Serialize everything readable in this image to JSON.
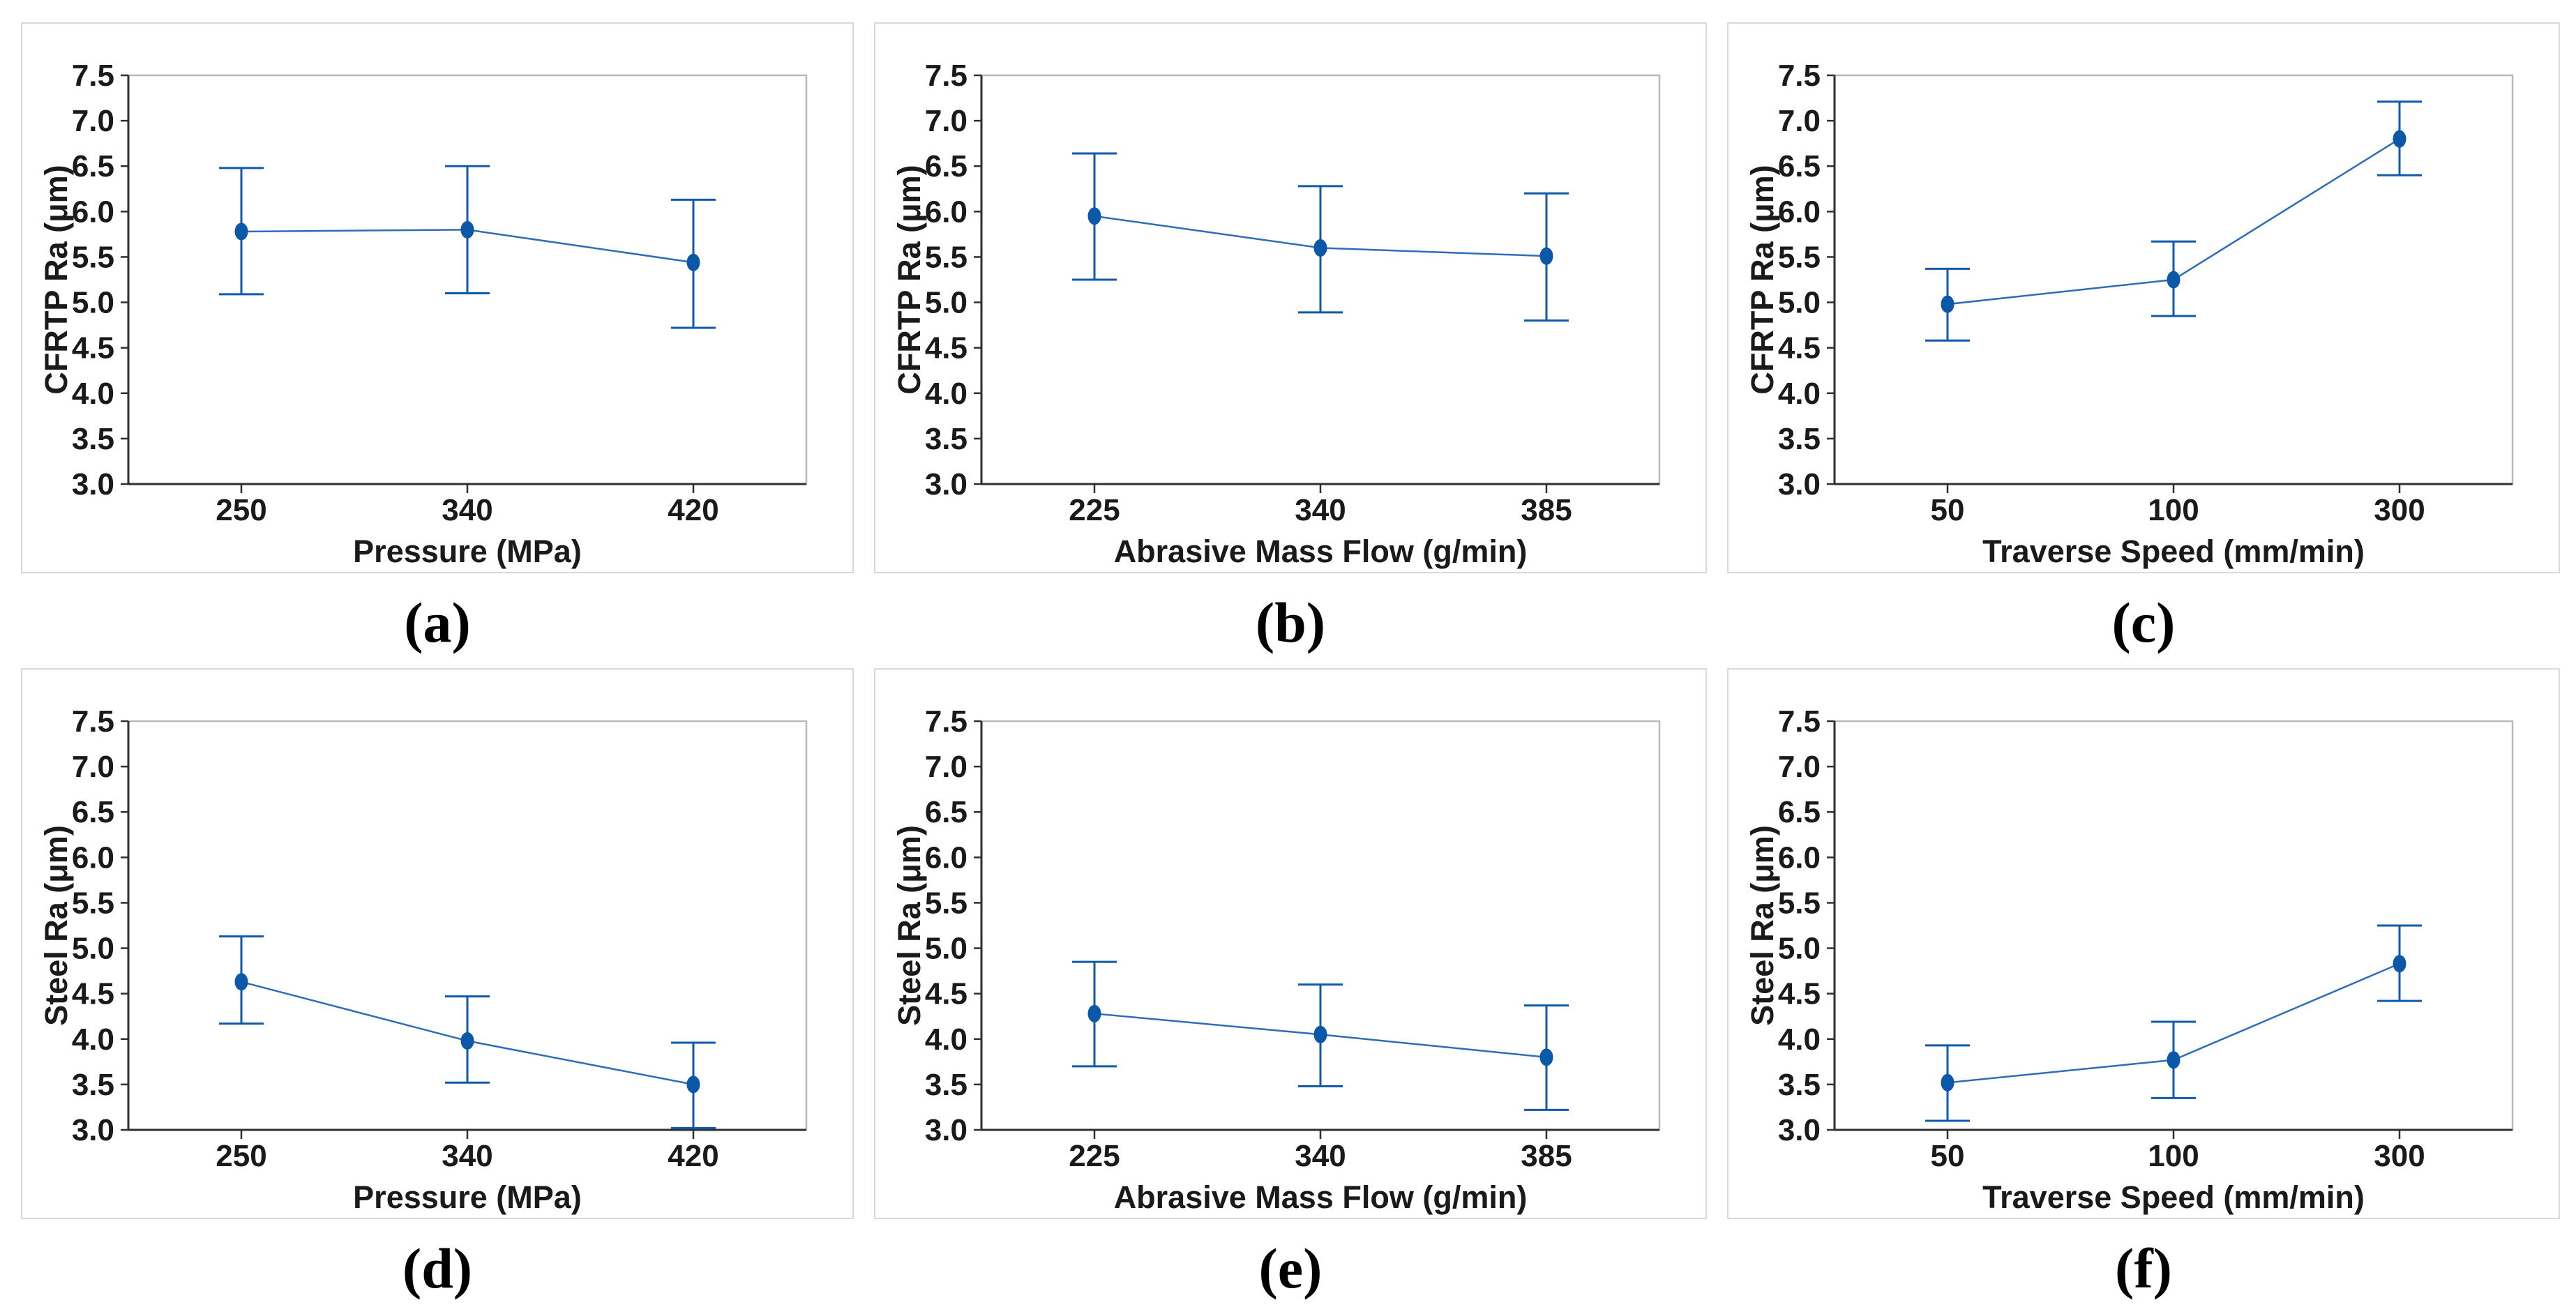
{
  "page": {
    "background": "#ffffff"
  },
  "style": {
    "marker_color": "#0b57a8",
    "error_bar_color": "#0f5aab",
    "connect_line_color": "#2f6db8",
    "plot_frame_color": "#b9b9b9",
    "axis_line_color": "#2f2f2f",
    "text_color": "#1a1a1a",
    "panel_border_color": "#d9d9d9"
  },
  "chart_data": [
    {
      "id": "a",
      "caption": "(a)",
      "type": "line",
      "title": "",
      "xlabel": "Pressure (MPa)",
      "ylabel": "CFRTP Ra (μm)",
      "categories": [
        "250",
        "340",
        "420"
      ],
      "series": [
        {
          "name": "CFRTP Ra mean",
          "values": [
            5.78,
            5.8,
            5.44
          ]
        }
      ],
      "ci_low": [
        5.09,
        5.1,
        4.72
      ],
      "ci_high": [
        6.48,
        6.5,
        6.13
      ],
      "ylim": [
        3.0,
        7.5
      ],
      "yticks": [
        "3.0",
        "3.5",
        "4.0",
        "4.5",
        "5.0",
        "5.5",
        "6.0",
        "6.5",
        "7.0",
        "7.5"
      ],
      "grid": "top-frame-only",
      "legend": "none",
      "marker": "filled-circle"
    },
    {
      "id": "b",
      "caption": "(b)",
      "type": "line",
      "title": "",
      "xlabel": "Abrasive Mass Flow (g/min)",
      "ylabel": "CFRTP Ra (μm)",
      "categories": [
        "225",
        "340",
        "385"
      ],
      "series": [
        {
          "name": "CFRTP Ra mean",
          "values": [
            5.95,
            5.6,
            5.51
          ]
        }
      ],
      "ci_low": [
        5.25,
        4.89,
        4.8
      ],
      "ci_high": [
        6.64,
        6.28,
        6.2
      ],
      "ylim": [
        3.0,
        7.5
      ],
      "yticks": [
        "3.0",
        "3.5",
        "4.0",
        "4.5",
        "5.0",
        "5.5",
        "6.0",
        "6.5",
        "7.0",
        "7.5"
      ],
      "grid": "top-frame-only",
      "legend": "none",
      "marker": "filled-circle"
    },
    {
      "id": "c",
      "caption": "(c)",
      "type": "line",
      "title": "",
      "xlabel": "Traverse Speed (mm/min)",
      "ylabel": "CFRTP Ra (μm)",
      "categories": [
        "50",
        "100",
        "300"
      ],
      "series": [
        {
          "name": "CFRTP Ra mean",
          "values": [
            4.98,
            5.25,
            6.8
          ]
        }
      ],
      "ci_low": [
        4.58,
        4.85,
        6.4
      ],
      "ci_high": [
        5.37,
        5.67,
        7.21
      ],
      "ylim": [
        3.0,
        7.5
      ],
      "yticks": [
        "3.0",
        "3.5",
        "4.0",
        "4.5",
        "5.0",
        "5.5",
        "6.0",
        "6.5",
        "7.0",
        "7.5"
      ],
      "grid": "top-frame-only",
      "legend": "none",
      "marker": "filled-circle"
    },
    {
      "id": "d",
      "caption": "(d)",
      "type": "line",
      "title": "",
      "xlabel": "Pressure (MPa)",
      "ylabel": "Steel Ra (μm)",
      "categories": [
        "250",
        "340",
        "420"
      ],
      "series": [
        {
          "name": "Steel Ra mean",
          "values": [
            4.63,
            3.98,
            3.5
          ]
        }
      ],
      "ci_low": [
        4.17,
        3.52,
        3.02
      ],
      "ci_high": [
        5.13,
        4.47,
        3.96
      ],
      "ylim": [
        3.0,
        7.5
      ],
      "yticks": [
        "3.0",
        "3.5",
        "4.0",
        "4.5",
        "5.0",
        "5.5",
        "6.0",
        "6.5",
        "7.0",
        "7.5"
      ],
      "grid": "top-frame-only",
      "legend": "none",
      "marker": "filled-circle"
    },
    {
      "id": "e",
      "caption": "(e)",
      "type": "line",
      "title": "",
      "xlabel": "Abrasive Mass Flow (g/min)",
      "ylabel": "Steel Ra (μm)",
      "categories": [
        "225",
        "340",
        "385"
      ],
      "series": [
        {
          "name": "Steel Ra mean",
          "values": [
            4.28,
            4.05,
            3.8
          ]
        }
      ],
      "ci_low": [
        3.7,
        3.48,
        3.22
      ],
      "ci_high": [
        4.85,
        4.6,
        4.37
      ],
      "ylim": [
        3.0,
        7.5
      ],
      "yticks": [
        "3.0",
        "3.5",
        "4.0",
        "4.5",
        "5.0",
        "5.5",
        "6.0",
        "6.5",
        "7.0",
        "7.5"
      ],
      "grid": "top-frame-only",
      "legend": "none",
      "marker": "filled-circle"
    },
    {
      "id": "f",
      "caption": "(f)",
      "type": "line",
      "title": "",
      "xlabel": "Traverse Speed (mm/min)",
      "ylabel": "Steel Ra (μm)",
      "categories": [
        "50",
        "100",
        "300"
      ],
      "series": [
        {
          "name": "Steel Ra mean",
          "values": [
            3.52,
            3.77,
            4.83
          ]
        }
      ],
      "ci_low": [
        3.1,
        3.35,
        4.42
      ],
      "ci_high": [
        3.93,
        4.19,
        5.25
      ],
      "ylim": [
        3.0,
        7.5
      ],
      "yticks": [
        "3.0",
        "3.5",
        "4.0",
        "4.5",
        "5.0",
        "5.5",
        "6.0",
        "6.5",
        "7.0",
        "7.5"
      ],
      "grid": "top-frame-only",
      "legend": "none",
      "marker": "filled-circle"
    }
  ]
}
